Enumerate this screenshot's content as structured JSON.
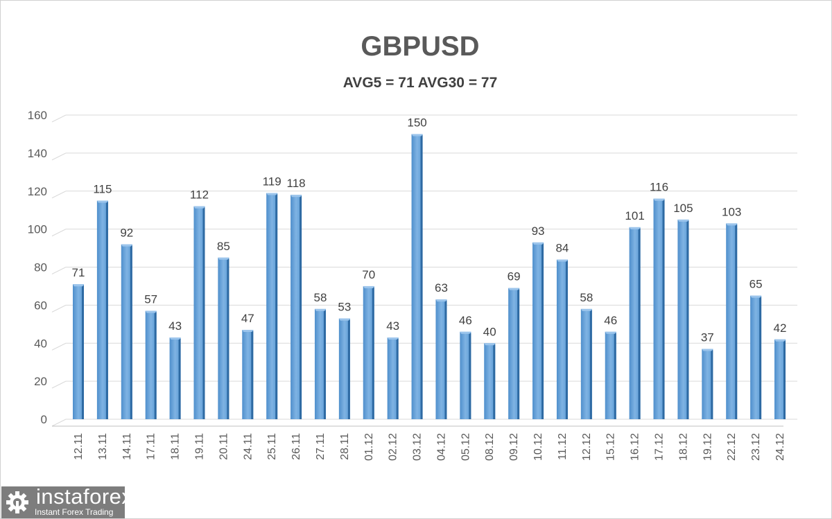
{
  "chart_data": {
    "type": "bar",
    "title": "GBPUSD",
    "subtitle": "AVG5 = 71 AVG30 = 77",
    "xlabel": "",
    "ylabel": "",
    "ylim": [
      0,
      160
    ],
    "yticks": [
      0,
      20,
      40,
      60,
      80,
      100,
      120,
      140,
      160
    ],
    "grid": true,
    "categories": [
      "12.11",
      "13.11",
      "14.11",
      "17.11",
      "18.11",
      "19.11",
      "20.11",
      "24.11",
      "25.11",
      "26.11",
      "27.11",
      "28.11",
      "01.12",
      "02.12",
      "03.12",
      "04.12",
      "05.12",
      "08.12",
      "09.12",
      "10.12",
      "11.12",
      "12.12",
      "15.12",
      "16.12",
      "17.12",
      "18.12",
      "19.12",
      "22.12",
      "23.12",
      "24.12"
    ],
    "values": [
      71,
      115,
      92,
      57,
      43,
      112,
      85,
      47,
      119,
      118,
      58,
      53,
      70,
      43,
      150,
      63,
      46,
      40,
      69,
      93,
      84,
      58,
      46,
      101,
      116,
      105,
      37,
      103,
      65,
      42
    ],
    "bar_color": "#5b9bd5"
  },
  "logo": {
    "brand": "instaforex",
    "tagline": "Instant Forex Trading"
  }
}
